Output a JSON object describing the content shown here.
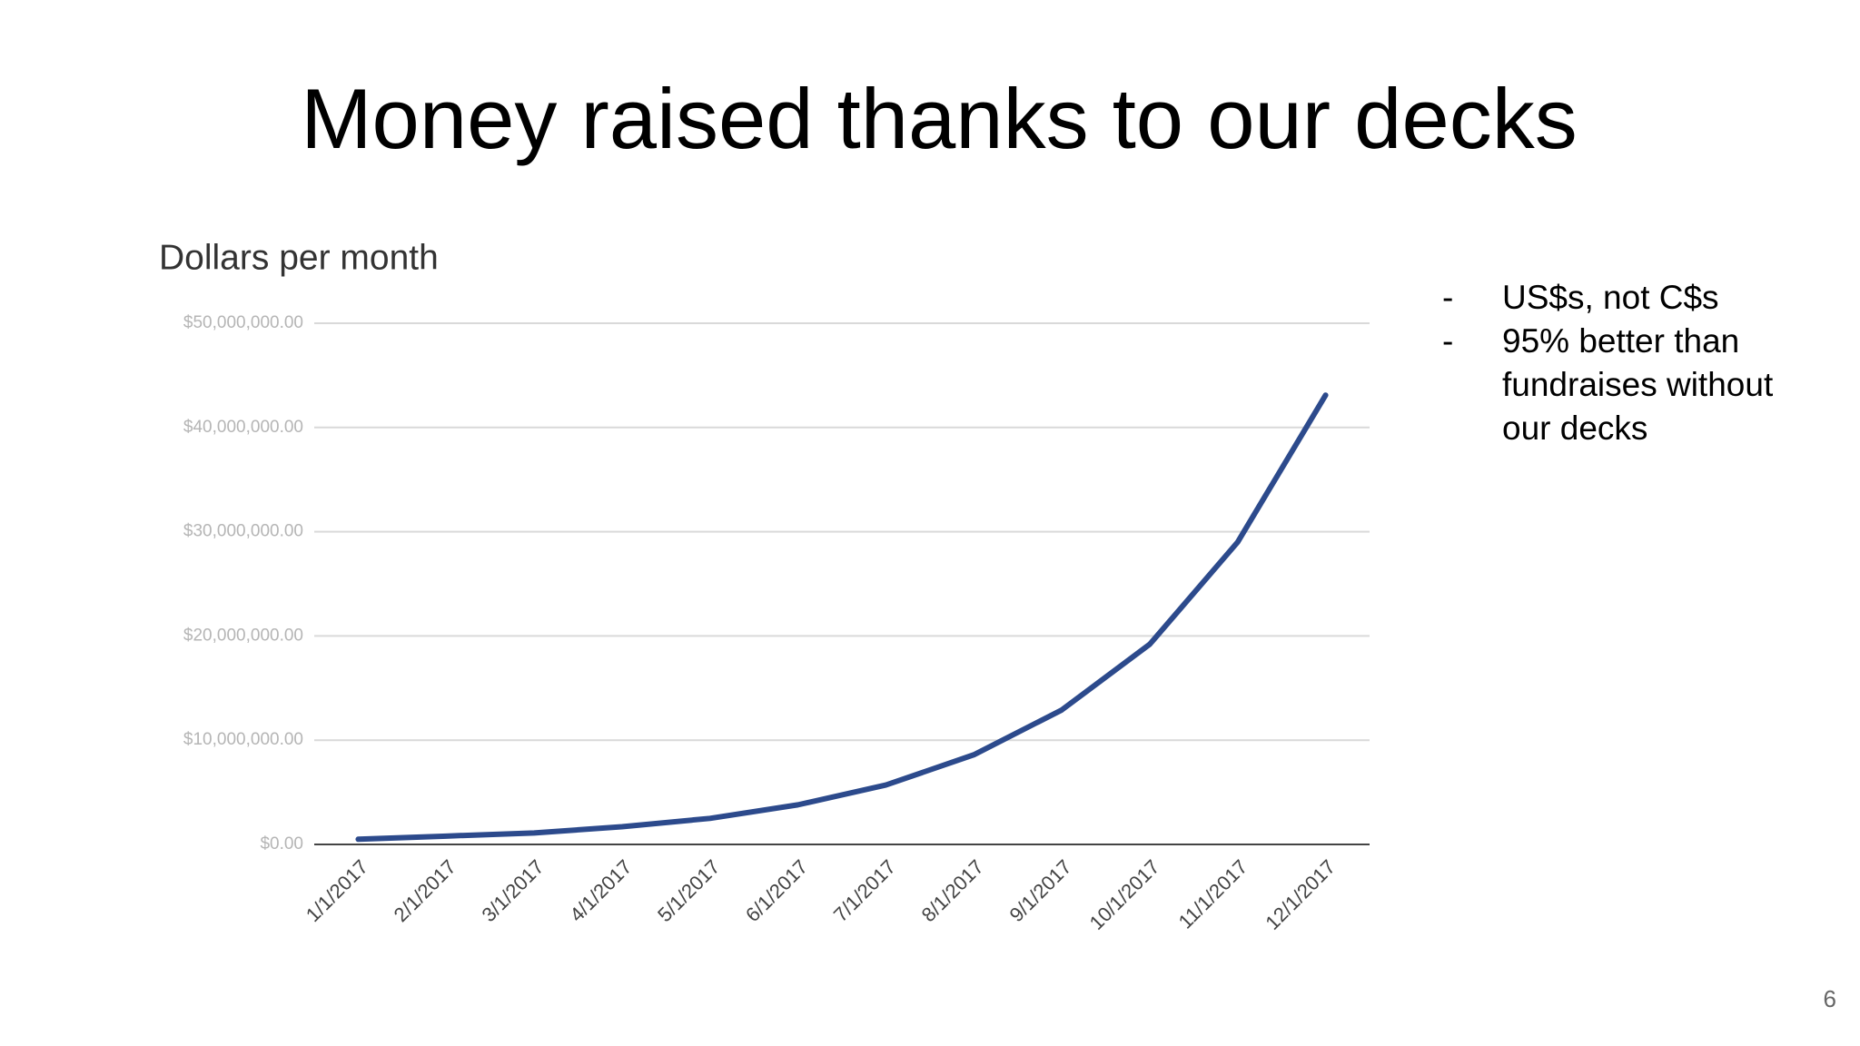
{
  "slide_title": "Money raised thanks to our decks",
  "notes": [
    "US$s, not C$s",
    "95% better than fundraises without our decks"
  ],
  "page_number": "6",
  "chart_data": {
    "type": "line",
    "title": "Dollars per month",
    "categories": [
      "1/1/2017",
      "2/1/2017",
      "3/1/2017",
      "4/1/2017",
      "5/1/2017",
      "6/1/2017",
      "7/1/2017",
      "8/1/2017",
      "9/1/2017",
      "10/1/2017",
      "11/1/2017",
      "12/1/2017"
    ],
    "series": [
      {
        "name": "Dollars per month",
        "color": "#2c4a8c",
        "values": [
          500000,
          800000,
          1100000,
          1700000,
          2500000,
          3800000,
          5700000,
          8600000,
          12900000,
          19200000,
          29000000,
          43100000
        ]
      }
    ],
    "ylim": [
      0,
      50000000
    ],
    "yticks": [
      {
        "value": 0,
        "label": "$0.00"
      },
      {
        "value": 10000000,
        "label": "$10,000,000.00"
      },
      {
        "value": 20000000,
        "label": "$20,000,000.00"
      },
      {
        "value": 30000000,
        "label": "$30,000,000.00"
      },
      {
        "value": 40000000,
        "label": "$40,000,000.00"
      },
      {
        "value": 50000000,
        "label": "$50,000,000.00"
      }
    ],
    "grid": true
  }
}
